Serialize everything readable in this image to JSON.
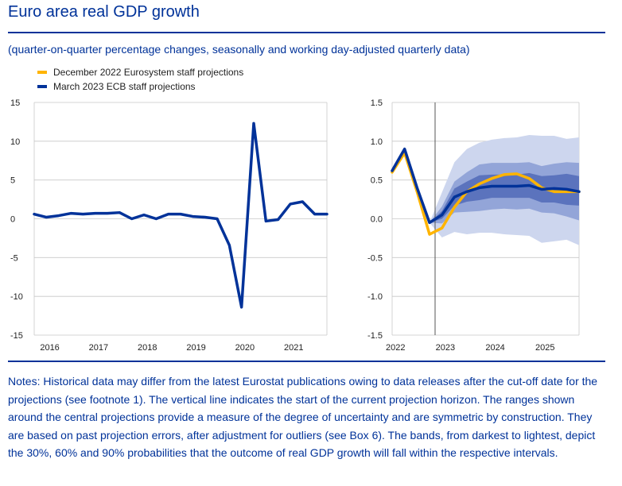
{
  "header": {
    "title": "Euro area real GDP growth",
    "subtitle": "(quarter-on-quarter percentage changes, seasonally and working day-adjusted quarterly data)"
  },
  "legend": {
    "items": [
      {
        "label": "December 2022 Eurosystem staff projections",
        "color": "#ffb400"
      },
      {
        "label": "March 2023 ECB staff projections",
        "color": "#003299"
      }
    ]
  },
  "notes": "Notes: Historical data may differ from the latest Eurostat publications owing to data releases after the cut-off date for the projections (see footnote 1). The vertical line indicates the start of the current projection horizon. The ranges shown around the central projections provide a measure of the degree of uncertainty and are symmetric by construction. They are based on past projection errors, after adjustment for outliers (see Box 6). The bands, from darkest to lightest, depict the 30%, 60% and 90% probabilities that the outcome of real GDP growth will fall within the respective intervals.",
  "colors": {
    "dark_blue": "#003299",
    "yellow": "#ffb400",
    "band_30": "#5b73bd",
    "band_60": "#93a5d8",
    "band_90": "#cdd6ee"
  },
  "chart_data": [
    {
      "type": "line",
      "title": "",
      "xlabel": "",
      "ylabel": "",
      "ylim": [
        -15,
        15
      ],
      "yticks": [
        "15",
        "10",
        "5",
        "0",
        "-5",
        "-10",
        "-15"
      ],
      "xticks": [
        "2016",
        "2017",
        "2018",
        "2019",
        "2020",
        "2021"
      ],
      "x": [
        "2015Q4",
        "2016Q1",
        "2016Q2",
        "2016Q3",
        "2016Q4",
        "2017Q1",
        "2017Q2",
        "2017Q3",
        "2017Q4",
        "2018Q1",
        "2018Q2",
        "2018Q3",
        "2018Q4",
        "2019Q1",
        "2019Q2",
        "2019Q3",
        "2019Q4",
        "2020Q1",
        "2020Q2",
        "2020Q3",
        "2020Q4",
        "2021Q1",
        "2021Q2",
        "2021Q3",
        "2021Q4"
      ],
      "series": [
        {
          "name": "March 2023 ECB staff projections",
          "values": [
            0.6,
            0.2,
            0.4,
            0.7,
            0.6,
            0.7,
            0.7,
            0.8,
            0.0,
            0.5,
            0.0,
            0.6,
            0.6,
            0.3,
            0.2,
            0.0,
            -3.4,
            -11.4,
            12.3,
            -0.3,
            -0.1,
            1.9,
            2.2,
            0.6,
            0.6
          ]
        }
      ],
      "grid": "horizontal"
    },
    {
      "type": "line",
      "title": "",
      "xlabel": "",
      "ylabel": "",
      "ylim": [
        -1.5,
        1.5
      ],
      "yticks": [
        "1.5",
        "1.0",
        "0.5",
        "0.0",
        "-0.5",
        "-1.0",
        "-1.5"
      ],
      "xticks": [
        "2022",
        "2023",
        "2024",
        "2025"
      ],
      "x": [
        "2022Q1",
        "2022Q2",
        "2022Q3",
        "2022Q4",
        "2023Q1",
        "2023Q2",
        "2023Q3",
        "2023Q4",
        "2024Q1",
        "2024Q2",
        "2024Q3",
        "2024Q4",
        "2025Q1",
        "2025Q2",
        "2025Q3",
        "2025Q4"
      ],
      "projection_start": "2022Q4",
      "series": [
        {
          "name": "December 2022 Eurosystem staff projections",
          "values": [
            0.6,
            0.85,
            0.35,
            -0.2,
            -0.12,
            0.15,
            0.35,
            0.45,
            0.52,
            0.57,
            0.58,
            0.52,
            0.4,
            0.35,
            0.35,
            0.35
          ]
        },
        {
          "name": "March 2023 ECB staff projections",
          "values": [
            0.62,
            0.9,
            0.4,
            -0.05,
            0.05,
            0.28,
            0.35,
            0.4,
            0.42,
            0.42,
            0.42,
            0.43,
            0.38,
            0.39,
            0.38,
            0.35
          ]
        }
      ],
      "uncertainty_bands": [
        {
          "probability": "90%",
          "lower": [
            null,
            null,
            null,
            -0.05,
            -0.24,
            -0.17,
            -0.2,
            -0.18,
            -0.18,
            -0.2,
            -0.21,
            -0.22,
            -0.31,
            -0.29,
            -0.27,
            -0.34
          ],
          "upper": [
            null,
            null,
            null,
            -0.05,
            0.34,
            0.73,
            0.9,
            0.98,
            1.02,
            1.04,
            1.05,
            1.08,
            1.07,
            1.07,
            1.03,
            1.05
          ]
        },
        {
          "probability": "60%",
          "lower": [
            null,
            null,
            null,
            -0.05,
            -0.06,
            0.08,
            0.09,
            0.1,
            0.12,
            0.13,
            0.12,
            0.13,
            0.08,
            0.07,
            0.03,
            -0.02
          ],
          "upper": [
            null,
            null,
            null,
            -0.05,
            0.16,
            0.48,
            0.6,
            0.7,
            0.72,
            0.72,
            0.72,
            0.73,
            0.68,
            0.71,
            0.73,
            0.72
          ]
        },
        {
          "probability": "30%",
          "lower": [
            null,
            null,
            null,
            -0.05,
            0.0,
            0.17,
            0.22,
            0.24,
            0.27,
            0.27,
            0.27,
            0.27,
            0.21,
            0.21,
            0.18,
            0.17
          ],
          "upper": [
            null,
            null,
            null,
            -0.05,
            0.1,
            0.39,
            0.48,
            0.56,
            0.57,
            0.57,
            0.57,
            0.59,
            0.55,
            0.56,
            0.58,
            0.55
          ]
        }
      ],
      "grid": "horizontal"
    }
  ]
}
